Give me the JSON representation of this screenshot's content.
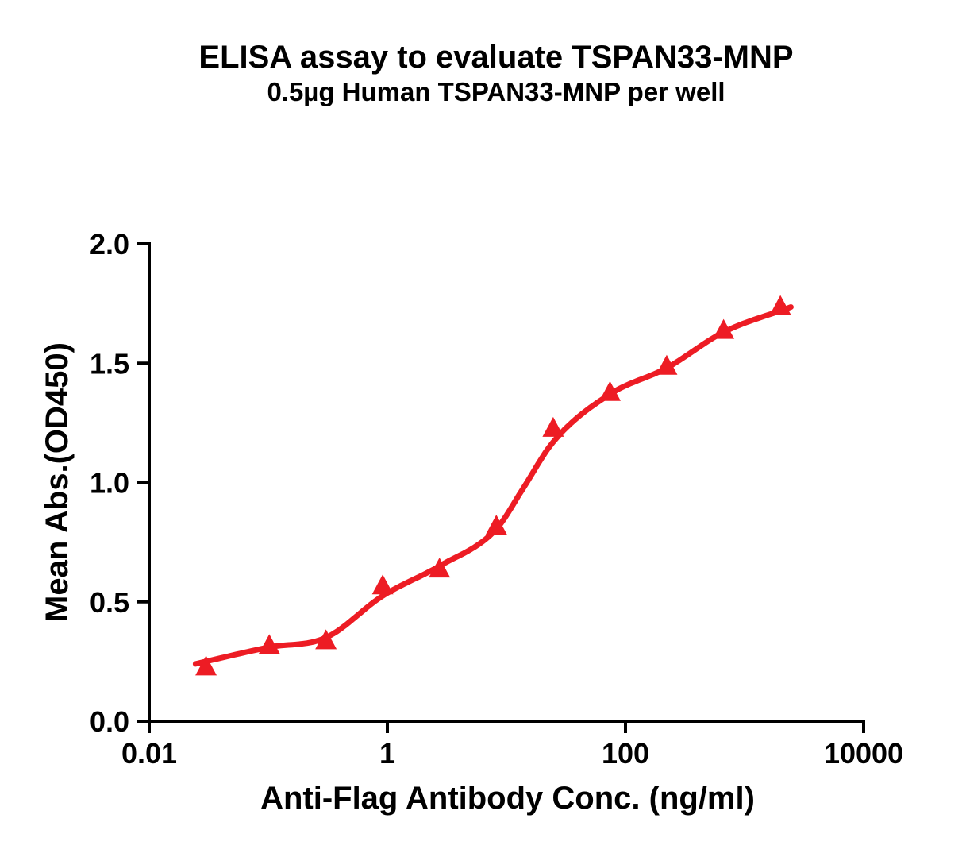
{
  "figure": {
    "background_color": "#ffffff",
    "text_color": "#000000"
  },
  "chart_data": {
    "type": "scatter",
    "title": "ELISA assay to evaluate TSPAN33-MNP",
    "subtitle": "0.5µg Human TSPAN33-MNP per well",
    "xlabel": "Anti-Flag Antibody Conc. (ng/ml)",
    "ylabel": "Mean Abs.(OD450)",
    "x_scale": "log",
    "xlim": [
      0.01,
      10000
    ],
    "ylim": [
      0.0,
      2.0
    ],
    "grid": false,
    "legend": false,
    "axis_color": "#000000",
    "x_ticks": [
      {
        "value": 0.01,
        "label": "0.01"
      },
      {
        "value": 1,
        "label": "1"
      },
      {
        "value": 100,
        "label": "100"
      },
      {
        "value": 10000,
        "label": "10000"
      }
    ],
    "y_ticks": [
      {
        "value": 0.0,
        "label": "0.0"
      },
      {
        "value": 0.5,
        "label": "0.5"
      },
      {
        "value": 1.0,
        "label": "1.0"
      },
      {
        "value": 1.5,
        "label": "1.5"
      },
      {
        "value": 2.0,
        "label": "2.0"
      }
    ],
    "series": [
      {
        "marker": "triangle-up",
        "color": "#ED1C24",
        "points": [
          {
            "x": 0.03,
            "y": 0.23
          },
          {
            "x": 0.102,
            "y": 0.32
          },
          {
            "x": 0.305,
            "y": 0.34
          },
          {
            "x": 0.914,
            "y": 0.57
          },
          {
            "x": 2.74,
            "y": 0.64
          },
          {
            "x": 8.23,
            "y": 0.82
          },
          {
            "x": 24.7,
            "y": 1.23
          },
          {
            "x": 74.1,
            "y": 1.38
          },
          {
            "x": 222,
            "y": 1.49
          },
          {
            "x": 667,
            "y": 1.64
          },
          {
            "x": 2000,
            "y": 1.74
          }
        ]
      }
    ],
    "fit_curve": {
      "description": "dose-response sigmoidal fit",
      "color": "#ED1C24",
      "stroke_width": 7,
      "anchors": [
        [
          0.0245,
          0.24
        ],
        [
          0.102,
          0.31
        ],
        [
          0.305,
          0.35
        ],
        [
          0.914,
          0.525
        ],
        [
          2.74,
          0.65
        ],
        [
          8.23,
          0.805
        ],
        [
          13.8,
          0.975
        ],
        [
          24.7,
          1.17
        ],
        [
          74.0,
          1.37
        ],
        [
          222,
          1.48
        ],
        [
          667,
          1.63
        ],
        [
          2450,
          1.735
        ]
      ]
    }
  }
}
